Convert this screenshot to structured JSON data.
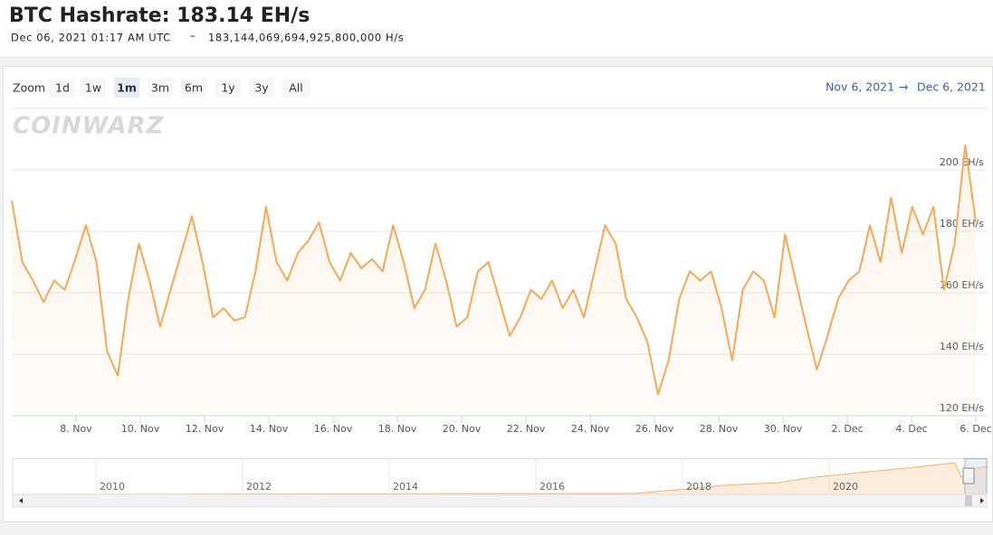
{
  "header": {
    "title": "BTC Hashrate: 183.14 EH/s",
    "timestamp": "Dec 06, 2021 01:17 AM UTC",
    "separator": "–",
    "hashrate": "183,144,069,694,925,800,000 H/s"
  },
  "zoom": {
    "label": "Zoom",
    "buttons": [
      "1d",
      "1w",
      "1m",
      "3m",
      "6m",
      "1y",
      "3y",
      "All"
    ],
    "selected": 2
  },
  "range": {
    "from": "Nov 6, 2021",
    "arrow": "→",
    "to": "Dec 6, 2021"
  },
  "watermark": "COINWARZ",
  "chart_data": {
    "type": "area",
    "color": "#f5a858",
    "grid": true,
    "xlim": [
      "2021-11-06",
      "2021-12-06"
    ],
    "xticks": [
      {
        "value": "2021-11-08",
        "label": "8. Nov"
      },
      {
        "value": "2021-11-10",
        "label": "10. Nov"
      },
      {
        "value": "2021-11-12",
        "label": "12. Nov"
      },
      {
        "value": "2021-11-14",
        "label": "14. Nov"
      },
      {
        "value": "2021-11-16",
        "label": "16. Nov"
      },
      {
        "value": "2021-11-18",
        "label": "18. Nov"
      },
      {
        "value": "2021-11-20",
        "label": "20. Nov"
      },
      {
        "value": "2021-11-22",
        "label": "22. Nov"
      },
      {
        "value": "2021-11-24",
        "label": "24. Nov"
      },
      {
        "value": "2021-11-26",
        "label": "26. Nov"
      },
      {
        "value": "2021-11-28",
        "label": "28. Nov"
      },
      {
        "value": "2021-11-30",
        "label": "30. Nov"
      },
      {
        "value": "2021-12-02",
        "label": "2. Dec"
      },
      {
        "value": "2021-12-04",
        "label": "4. Dec"
      },
      {
        "value": "2021-12-06",
        "label": "6. Dec"
      }
    ],
    "ylim": [
      120,
      220
    ],
    "yticks": [
      {
        "value": 120,
        "label": "120 EH/s"
      },
      {
        "value": 140,
        "label": "140 EH/s"
      },
      {
        "value": 160,
        "label": "160 EH/s"
      },
      {
        "value": 180,
        "label": "180 EH/s"
      },
      {
        "value": 200,
        "label": "200 EH/s"
      }
    ],
    "values": [
      190,
      170,
      164,
      157,
      164,
      161,
      171,
      182,
      170,
      141,
      133,
      158,
      176,
      164,
      149,
      161,
      173,
      185,
      170,
      152,
      155,
      151,
      152,
      167,
      188,
      170,
      164,
      173,
      177,
      183,
      170,
      164,
      173,
      168,
      171,
      167,
      182,
      170,
      155,
      161,
      176,
      164,
      149,
      152,
      167,
      170,
      158,
      146,
      152,
      161,
      158,
      164,
      155,
      161,
      152,
      167,
      182,
      176,
      158,
      152,
      144,
      127,
      138,
      158,
      167,
      164,
      167,
      155,
      138,
      161,
      167,
      164,
      152,
      179,
      164,
      149,
      135,
      146,
      158,
      164,
      167,
      182,
      170,
      191,
      173,
      188,
      179,
      188,
      161,
      176,
      208,
      183
    ]
  },
  "navigator": {
    "labels": [
      "2010",
      "2012",
      "2014",
      "2016",
      "2018",
      "2020"
    ]
  }
}
